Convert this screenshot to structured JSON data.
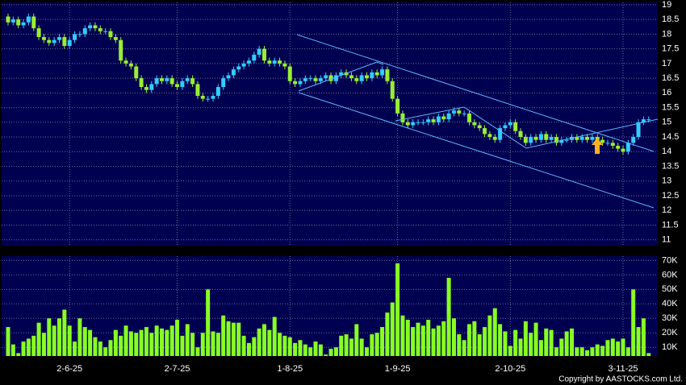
{
  "chart_data": {
    "type": "candlestick",
    "up_color": "#33ccff",
    "down_color": "#99ee33",
    "volume_color": "#88ff22",
    "grid": true,
    "open": [
      18.6,
      18.4,
      18.5,
      18.3,
      18.4,
      18.6,
      18.2,
      17.9,
      17.8,
      17.7,
      17.8,
      17.9,
      17.6,
      17.8,
      18.0,
      18.0,
      18.2,
      18.3,
      18.2,
      18.1,
      18.1,
      17.9,
      17.8,
      17.1,
      17.0,
      16.9,
      16.5,
      16.2,
      16.1,
      16.3,
      16.5,
      16.4,
      16.5,
      16.3,
      16.2,
      16.4,
      16.5,
      16.3,
      15.9,
      15.8,
      15.8,
      15.9,
      16.2,
      16.5,
      16.6,
      16.8,
      16.9,
      17.0,
      17.1,
      17.3,
      17.5,
      17.1,
      17.0,
      17.1,
      17.0,
      16.9,
      16.4,
      16.3,
      16.4,
      16.5,
      16.5,
      16.4,
      16.5,
      16.6,
      16.4,
      16.6,
      16.7,
      16.6,
      16.5,
      16.4,
      16.6,
      16.5,
      16.7,
      16.6,
      16.8,
      16.4,
      15.8,
      15.3,
      15.0,
      14.9,
      15.0,
      15.0,
      15.0,
      15.1,
      15.0,
      15.2,
      15.1,
      15.3,
      15.4,
      15.3,
      15.3,
      15.0,
      14.9,
      14.8,
      14.6,
      14.5,
      14.4,
      14.8,
      14.9,
      15.0,
      14.7,
      14.5,
      14.3,
      14.5,
      14.4,
      14.6,
      14.4,
      14.5,
      14.3,
      14.4,
      14.4,
      14.5,
      14.4,
      14.5,
      14.4,
      14.5,
      14.4,
      14.3,
      14.3,
      14.2,
      14.1,
      14.0,
      14.3,
      14.5,
      15.0,
      15.1
    ],
    "high": [
      18.7,
      18.6,
      18.6,
      18.5,
      18.7,
      18.7,
      18.3,
      18.0,
      17.9,
      17.9,
      18.0,
      18.0,
      17.9,
      18.1,
      18.1,
      18.3,
      18.4,
      18.4,
      18.3,
      18.2,
      18.2,
      18.0,
      17.9,
      17.2,
      17.1,
      17.0,
      16.6,
      16.3,
      16.4,
      16.6,
      16.6,
      16.6,
      16.6,
      16.4,
      16.5,
      16.6,
      16.6,
      16.4,
      16.0,
      15.9,
      16.0,
      16.3,
      16.6,
      16.7,
      16.9,
      17.0,
      17.1,
      17.2,
      17.4,
      17.6,
      17.6,
      17.2,
      17.2,
      17.2,
      17.1,
      17.0,
      16.5,
      16.5,
      16.6,
      16.6,
      16.6,
      16.6,
      16.7,
      16.7,
      16.7,
      16.8,
      16.8,
      16.7,
      16.6,
      16.7,
      16.7,
      16.8,
      16.8,
      16.9,
      16.9,
      16.5,
      15.9,
      15.4,
      15.1,
      15.1,
      15.1,
      15.1,
      15.2,
      15.2,
      15.3,
      15.3,
      15.4,
      15.5,
      15.5,
      15.4,
      15.4,
      15.1,
      15.0,
      14.9,
      14.7,
      14.6,
      14.9,
      15.0,
      15.1,
      15.1,
      14.8,
      14.6,
      14.6,
      14.6,
      14.7,
      14.7,
      14.6,
      14.6,
      14.5,
      14.5,
      14.6,
      14.6,
      14.6,
      14.6,
      14.6,
      14.6,
      14.5,
      14.4,
      14.4,
      14.3,
      14.2,
      14.4,
      14.6,
      15.1,
      15.2,
      15.2
    ],
    "low": [
      18.3,
      18.3,
      18.2,
      18.2,
      18.3,
      18.1,
      17.8,
      17.7,
      17.6,
      17.6,
      17.7,
      17.5,
      17.5,
      17.7,
      17.9,
      17.9,
      18.1,
      18.1,
      18.0,
      18.0,
      17.8,
      17.7,
      17.0,
      16.9,
      16.8,
      16.4,
      16.1,
      16.0,
      16.0,
      16.2,
      16.3,
      16.3,
      16.2,
      16.1,
      16.1,
      16.3,
      16.2,
      15.8,
      15.7,
      15.7,
      15.7,
      15.8,
      16.1,
      16.4,
      16.5,
      16.7,
      16.8,
      16.9,
      17.0,
      17.2,
      17.0,
      16.9,
      16.9,
      16.9,
      16.8,
      16.3,
      16.2,
      16.2,
      16.3,
      16.4,
      16.3,
      16.3,
      16.4,
      16.3,
      16.3,
      16.5,
      16.5,
      16.4,
      16.3,
      16.3,
      16.4,
      16.4,
      16.5,
      16.5,
      16.3,
      15.7,
      15.2,
      14.9,
      14.8,
      14.8,
      14.9,
      14.9,
      14.9,
      14.9,
      14.9,
      15.0,
      15.0,
      15.2,
      15.2,
      15.2,
      14.9,
      14.8,
      14.7,
      14.5,
      14.4,
      14.3,
      14.3,
      14.7,
      14.8,
      14.6,
      14.4,
      14.2,
      14.2,
      14.3,
      14.3,
      14.3,
      14.3,
      14.2,
      14.2,
      14.3,
      14.3,
      14.3,
      14.3,
      14.3,
      14.3,
      14.3,
      14.2,
      14.2,
      14.1,
      14.0,
      13.9,
      13.9,
      14.2,
      14.4,
      14.9,
      15.0
    ],
    "close": [
      18.4,
      18.5,
      18.3,
      18.4,
      18.6,
      18.2,
      17.9,
      17.8,
      17.7,
      17.8,
      17.9,
      17.6,
      17.8,
      18.0,
      18.0,
      18.2,
      18.3,
      18.2,
      18.1,
      18.1,
      17.9,
      17.8,
      17.1,
      17.0,
      16.9,
      16.5,
      16.2,
      16.1,
      16.3,
      16.5,
      16.4,
      16.5,
      16.3,
      16.2,
      16.4,
      16.5,
      16.3,
      15.9,
      15.8,
      15.8,
      15.9,
      16.2,
      16.5,
      16.6,
      16.8,
      16.9,
      17.0,
      17.1,
      17.3,
      17.5,
      17.1,
      17.0,
      17.1,
      17.0,
      16.9,
      16.4,
      16.3,
      16.4,
      16.5,
      16.5,
      16.4,
      16.5,
      16.6,
      16.4,
      16.6,
      16.7,
      16.6,
      16.5,
      16.4,
      16.6,
      16.5,
      16.7,
      16.6,
      16.8,
      16.4,
      15.8,
      15.3,
      15.0,
      14.9,
      15.0,
      15.0,
      15.0,
      15.1,
      15.0,
      15.2,
      15.1,
      15.3,
      15.4,
      15.3,
      15.3,
      15.0,
      14.9,
      14.8,
      14.6,
      14.5,
      14.4,
      14.8,
      14.9,
      15.0,
      14.7,
      14.5,
      14.3,
      14.5,
      14.4,
      14.6,
      14.4,
      14.5,
      14.3,
      14.4,
      14.4,
      14.5,
      14.4,
      14.5,
      14.4,
      14.5,
      14.4,
      14.3,
      14.3,
      14.2,
      14.1,
      14.0,
      14.3,
      14.5,
      15.0,
      15.1,
      15.1
    ],
    "volume": [
      24000,
      12000,
      6000,
      14000,
      16000,
      18000,
      27000,
      20000,
      30000,
      25000,
      30000,
      36000,
      25000,
      14000,
      30000,
      24000,
      22000,
      17000,
      14000,
      10000,
      15000,
      22000,
      18000,
      25000,
      21000,
      20000,
      22000,
      24000,
      20000,
      25000,
      23000,
      22000,
      25000,
      29000,
      18000,
      26000,
      20000,
      10000,
      20000,
      50000,
      21000,
      20000,
      32000,
      28000,
      27000,
      27000,
      18000,
      13000,
      17000,
      23000,
      26000,
      22000,
      31000,
      20000,
      18000,
      17000,
      13000,
      15000,
      12000,
      10000,
      14000,
      12000,
      5000,
      9000,
      10000,
      18000,
      19000,
      16000,
      26000,
      16000,
      10000,
      19000,
      20000,
      24000,
      34000,
      41000,
      68000,
      32000,
      29000,
      24000,
      27000,
      25000,
      29000,
      23000,
      25000,
      28000,
      58000,
      30000,
      19000,
      15000,
      26000,
      28000,
      19000,
      24000,
      32000,
      37000,
      26000,
      21000,
      11000,
      22000,
      16000,
      28000,
      20000,
      27000,
      15000,
      23000,
      22000,
      10000,
      16000,
      21000,
      23000,
      10000,
      10000,
      8000,
      10000,
      12000,
      11000,
      15000,
      16000,
      14000,
      16000,
      10000,
      50000,
      24000,
      30000,
      6000
    ],
    "xticks": [
      {
        "value": 12,
        "label": "2-6-25"
      },
      {
        "value": 33,
        "label": "2-7-25"
      },
      {
        "value": 55,
        "label": "1-8-25"
      },
      {
        "value": 76,
        "label": "1-9-25"
      },
      {
        "value": 98,
        "label": "2-10-25"
      },
      {
        "value": 120,
        "label": "3-11-25"
      }
    ],
    "ylim": [
      10.8,
      19.08
    ],
    "yticks": [
      11,
      11.5,
      12,
      12.5,
      13,
      13.5,
      14,
      14.5,
      15,
      15.5,
      16,
      16.5,
      17,
      17.5,
      18,
      18.5,
      19
    ],
    "volume_ylim": [
      4000,
      73000
    ],
    "volume_yticks": [
      {
        "value": 10000,
        "label": "10K"
      },
      {
        "value": 20000,
        "label": "20K"
      },
      {
        "value": 30000,
        "label": "30K"
      },
      {
        "value": 40000,
        "label": "40K"
      },
      {
        "value": 50000,
        "label": "50K"
      },
      {
        "value": 60000,
        "label": "60K"
      },
      {
        "value": 70000,
        "label": "70K"
      }
    ],
    "copyright": "Copyright by AASTOCKS.com Ltd."
  }
}
